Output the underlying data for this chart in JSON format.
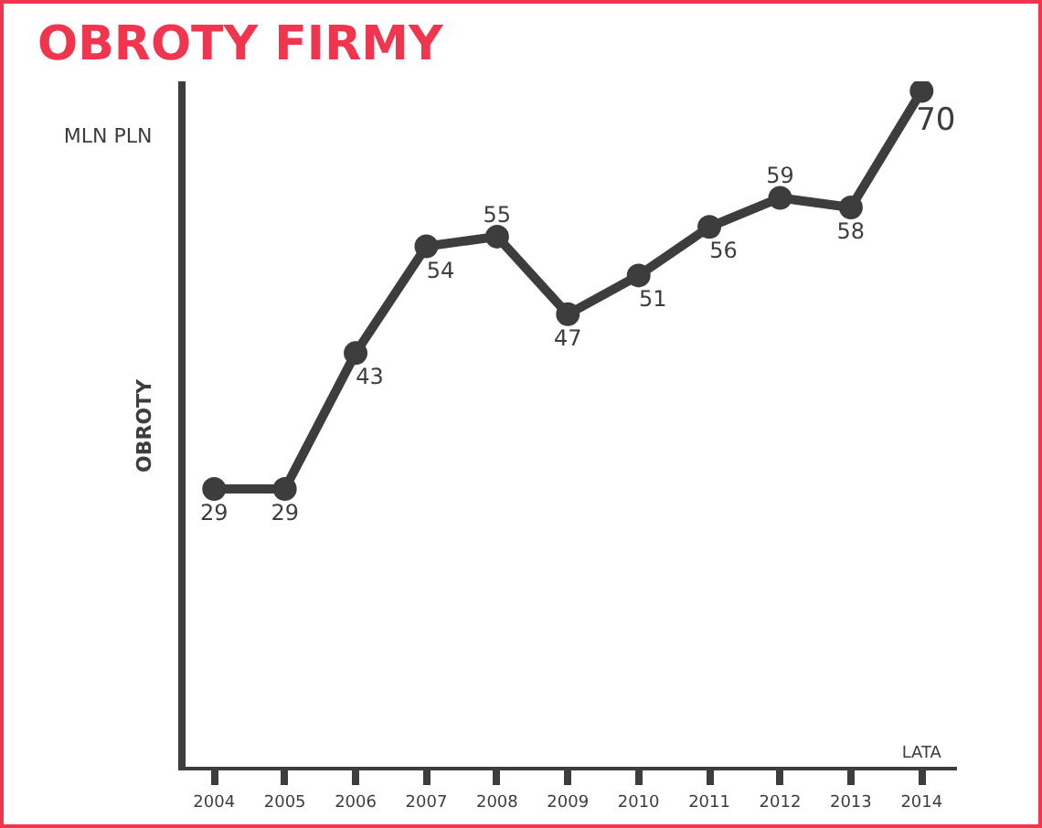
{
  "chart_data": {
    "type": "line",
    "title": "OBROTY FIRMY",
    "xlabel": "LATA",
    "ylabel": "OBROTY",
    "annotations": [
      "MLN PLN"
    ],
    "categories": [
      "2004",
      "2005",
      "2006",
      "2007",
      "2008",
      "2009",
      "2010",
      "2011",
      "2012",
      "2013",
      "2014"
    ],
    "series": [
      {
        "color": "#3d3d3d",
        "values": [
          29,
          29,
          43,
          54,
          55,
          47,
          51,
          56,
          59,
          58,
          70
        ]
      }
    ],
    "ylim": [
      0,
      71
    ],
    "data_labels": true,
    "marker": "circle",
    "line_style": "solid",
    "grid": false,
    "tick_labels": "x"
  }
}
